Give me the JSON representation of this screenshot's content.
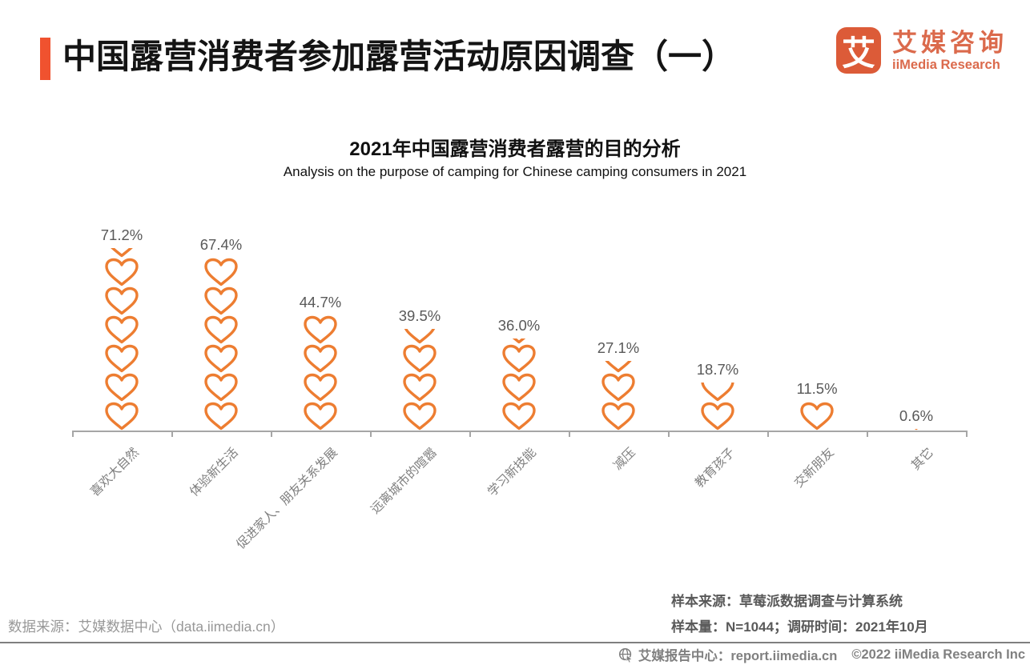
{
  "header": {
    "title": "中国露营消费者参加露营活动原因调查（一）",
    "logo": {
      "icon_glyph": "艾",
      "name_cn": "艾媒咨询",
      "name_en": "iiMedia Research"
    }
  },
  "chart": {
    "title": "2021年中国露营消费者露营的目的分析",
    "subtitle": "Analysis on the purpose of camping for Chinese camping consumers in 2021"
  },
  "chart_data": {
    "type": "bar",
    "style": "pictograph-stacked-heart-icons",
    "title": "2021年中国露营消费者露营的目的分析",
    "subtitle": "Analysis on the purpose of camping for Chinese camping consumers in 2021",
    "categories": [
      "喜欢大自然",
      "体验新生活",
      "促进家人、朋友关系发展",
      "远离城市的喧嚣",
      "学习新技能",
      "减压",
      "教育孩子",
      "交新朋友",
      "其它"
    ],
    "values": [
      71.2,
      67.4,
      44.7,
      39.5,
      36.0,
      27.1,
      18.7,
      11.5,
      0.6
    ],
    "labels": [
      "71.2%",
      "67.4%",
      "44.7%",
      "39.5%",
      "36.0%",
      "27.1%",
      "18.7%",
      "11.5%",
      "0.6%"
    ],
    "unit": "%",
    "icon": "heart-outline-icon",
    "value_per_icon": 11.2333,
    "ylim": [
      0,
      80
    ],
    "grid": false,
    "legend": "none",
    "xlabel": "",
    "ylabel": ""
  },
  "footer": {
    "sample_source": "样本来源：草莓派数据调查与计算系统",
    "sample_info": "样本量：N=1044；调研时间：2021年10月",
    "data_source": "数据来源：艾媒数据中心（data.iimedia.cn）",
    "report_center": "艾媒报告中心：report.iimedia.cn",
    "copyright": "©2022  iiMedia Research  Inc"
  },
  "colors": {
    "accent": "#F0522F",
    "logo": "#DC5B38",
    "logo_text": "#DB6A4C",
    "heart": "#ED7D31",
    "value_label": "#595959",
    "category_label": "#7F7F7F",
    "axis": "#A6A6A6",
    "note_gray": "#595959",
    "source_gray": "#989898",
    "footer_gray": "#808080"
  }
}
